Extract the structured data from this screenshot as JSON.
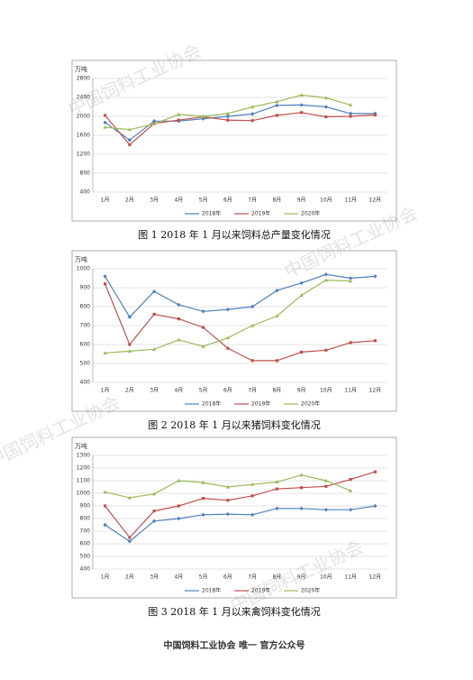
{
  "watermark": "中国饲料工业协会",
  "footer": "中国饲料工业协会  唯一  官方公众号",
  "chart_data": [
    {
      "type": "line",
      "title": "图 1    2018 年 1 月以来饲料总产量变化情况",
      "y_label": "万吨",
      "categories": [
        "1月",
        "2月",
        "3月",
        "4月",
        "5月",
        "6月",
        "7月",
        "8月",
        "9月",
        "10月",
        "11月",
        "12月"
      ],
      "ylim": [
        400,
        2800
      ],
      "yticks": [
        400,
        800,
        1200,
        1600,
        2000,
        2400,
        2800
      ],
      "grid": true,
      "series": [
        {
          "name": "2018年",
          "color": "#4f81bd",
          "values": [
            1870,
            1500,
            1900,
            1900,
            1950,
            2000,
            2050,
            2230,
            2240,
            2200,
            2060,
            2060
          ]
        },
        {
          "name": "2019年",
          "color": "#c0504d",
          "values": [
            2020,
            1400,
            1850,
            1920,
            1990,
            1920,
            1910,
            2020,
            2080,
            1990,
            2000,
            2030
          ]
        },
        {
          "name": "2020年",
          "color": "#9bbb59",
          "values": [
            1770,
            1720,
            1840,
            2040,
            2000,
            2060,
            2200,
            2310,
            2450,
            2390,
            2240,
            null
          ]
        }
      ]
    },
    {
      "type": "line",
      "title": "图 2    2018 年 1 月以来猪饲料变化情况",
      "y_label": "万吨",
      "categories": [
        "1月",
        "2月",
        "3月",
        "4月",
        "5月",
        "6月",
        "7月",
        "8月",
        "9月",
        "10月",
        "11月",
        "12月"
      ],
      "ylim": [
        400,
        1000
      ],
      "yticks": [
        400,
        500,
        600,
        700,
        800,
        900,
        1000
      ],
      "grid": true,
      "series": [
        {
          "name": "2018年",
          "color": "#4f81bd",
          "values": [
            960,
            745,
            880,
            810,
            775,
            785,
            800,
            885,
            925,
            970,
            950,
            960
          ]
        },
        {
          "name": "2019年",
          "color": "#c0504d",
          "values": [
            920,
            600,
            760,
            735,
            690,
            580,
            515,
            515,
            560,
            570,
            610,
            620
          ]
        },
        {
          "name": "2020年",
          "color": "#9bbb59",
          "values": [
            555,
            565,
            575,
            625,
            590,
            635,
            700,
            750,
            860,
            940,
            935,
            null
          ]
        }
      ]
    },
    {
      "type": "line",
      "title": "图 3    2018 年 1 月以来禽饲料变化情况",
      "y_label": "万吨",
      "categories": [
        "1月",
        "2月",
        "3月",
        "4月",
        "5月",
        "6月",
        "7月",
        "8月",
        "9月",
        "10月",
        "11月",
        "12月"
      ],
      "ylim": [
        400,
        1300
      ],
      "yticks": [
        400,
        500,
        600,
        700,
        800,
        900,
        1000,
        1100,
        1200,
        1300
      ],
      "grid": true,
      "series": [
        {
          "name": "2018年",
          "color": "#4f81bd",
          "values": [
            750,
            620,
            780,
            800,
            830,
            835,
            830,
            880,
            880,
            870,
            870,
            900
          ]
        },
        {
          "name": "2019年",
          "color": "#c0504d",
          "values": [
            900,
            650,
            860,
            900,
            960,
            945,
            980,
            1035,
            1045,
            1055,
            1110,
            1170
          ]
        },
        {
          "name": "2020年",
          "color": "#9bbb59",
          "values": [
            1010,
            965,
            995,
            1100,
            1085,
            1050,
            1070,
            1090,
            1145,
            1100,
            1020,
            null
          ]
        }
      ]
    }
  ]
}
